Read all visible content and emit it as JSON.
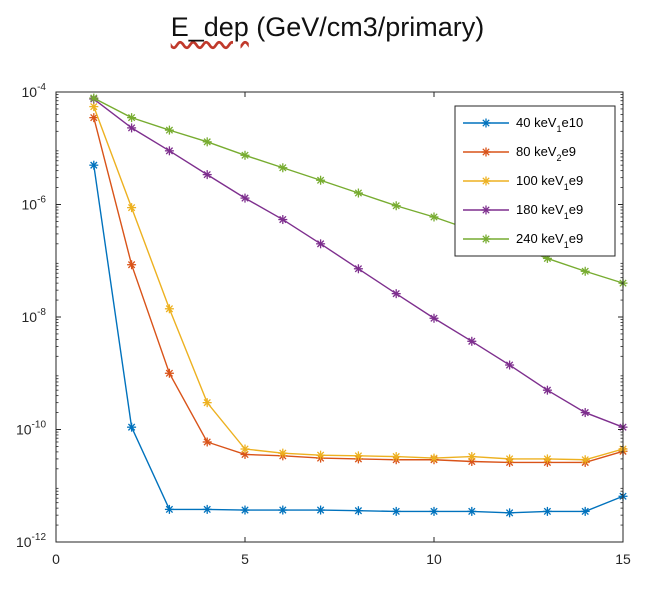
{
  "chart_data": {
    "type": "line",
    "title": "E_dep (GeV/cm3/primary)",
    "title_first_word": "E_dep",
    "title_rest": " (GeV/cm3/primary)",
    "xlabel": "",
    "ylabel": "",
    "xlim": [
      0,
      15
    ],
    "ylim": [
      1e-12,
      0.0001
    ],
    "yscale": "log",
    "grid": false,
    "legend_position": "top-right",
    "xticks": [
      {
        "value": 0,
        "label": "0"
      },
      {
        "value": 5,
        "label": "5"
      },
      {
        "value": 10,
        "label": "10"
      },
      {
        "value": 15,
        "label": "15"
      }
    ],
    "yticks": [
      {
        "value": 1e-12,
        "base": "10",
        "exp": "-12"
      },
      {
        "value": 1e-10,
        "base": "10",
        "exp": "-10"
      },
      {
        "value": 1e-08,
        "base": "10",
        "exp": "-8"
      },
      {
        "value": 1e-06,
        "base": "10",
        "exp": "-6"
      },
      {
        "value": 0.0001,
        "base": "10",
        "exp": "-4"
      }
    ],
    "x": [
      1,
      2,
      3,
      4,
      5,
      6,
      7,
      8,
      9,
      10,
      11,
      12,
      13,
      14,
      15
    ],
    "series": [
      {
        "name": "40 keV_1e10",
        "label_main": "40 keV",
        "label_sub": "1",
        "label_tail": "e10",
        "color": "#0072BD",
        "values": [
          5e-06,
          1.1e-10,
          3.8e-12,
          3.8e-12,
          3.7e-12,
          3.7e-12,
          3.7e-12,
          3.6e-12,
          3.5e-12,
          3.5e-12,
          3.5e-12,
          3.3e-12,
          3.5e-12,
          3.5e-12,
          6.5e-12
        ]
      },
      {
        "name": "80 keV_2e9",
        "label_main": "80 keV",
        "label_sub": "2",
        "label_tail": "e9",
        "color": "#D95319",
        "values": [
          3.5e-05,
          8.5e-08,
          1e-09,
          6e-11,
          3.6e-11,
          3.4e-11,
          3.1e-11,
          3e-11,
          2.9e-11,
          2.9e-11,
          2.7e-11,
          2.6e-11,
          2.6e-11,
          2.6e-11,
          4.1e-11
        ]
      },
      {
        "name": "100 keV_1e9",
        "label_main": "100 keV",
        "label_sub": "1",
        "label_tail": "e9",
        "color": "#EDB120",
        "values": [
          5.5e-05,
          8.8e-07,
          1.4e-08,
          3e-10,
          4.5e-11,
          3.8e-11,
          3.5e-11,
          3.4e-11,
          3.3e-11,
          3.1e-11,
          3.3e-11,
          3e-11,
          3e-11,
          2.9e-11,
          4.5e-11
        ]
      },
      {
        "name": "180 keV_1e9",
        "label_main": "180 keV",
        "label_sub": "1",
        "label_tail": "e9",
        "color": "#7E2F8E",
        "values": [
          7.5e-05,
          2.3e-05,
          9e-06,
          3.4e-06,
          1.3e-06,
          5.4e-07,
          2e-07,
          7.2e-08,
          2.6e-08,
          9.5e-09,
          3.7e-09,
          1.4e-09,
          5e-10,
          2e-10,
          1.1e-10
        ]
      },
      {
        "name": "240 keV_1e9",
        "label_main": "240 keV",
        "label_sub": "1",
        "label_tail": "e9",
        "color": "#77AC30",
        "values": [
          7.8e-05,
          3.5e-05,
          2.1e-05,
          1.3e-05,
          7.5e-06,
          4.5e-06,
          2.7e-06,
          1.6e-06,
          9.5e-07,
          6e-07,
          3.5e-07,
          2e-07,
          1.1e-07,
          6.5e-08,
          4e-08
        ]
      }
    ]
  }
}
